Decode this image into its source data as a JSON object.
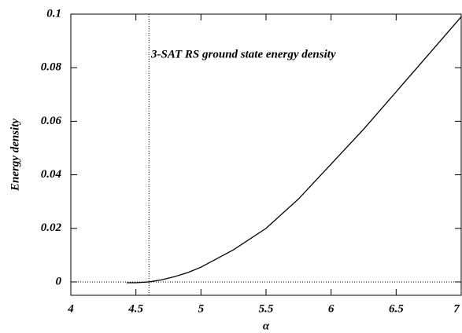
{
  "chart_data": {
    "type": "line",
    "annotation": "3-SAT   RS ground state energy density",
    "xlabel": "α",
    "ylabel": "Energy density",
    "x": [
      4.43,
      4.5,
      4.6,
      4.7,
      4.8,
      4.9,
      5.0,
      5.25,
      5.5,
      5.75,
      6.0,
      6.25,
      6.5,
      6.75,
      7.0
    ],
    "values": [
      -0.0003,
      -0.0003,
      0,
      0.0008,
      0.002,
      0.0035,
      0.0055,
      0.012,
      0.02,
      0.031,
      0.044,
      0.057,
      0.071,
      0.085,
      0.099
    ],
    "color": "#000000",
    "reference_lines": {
      "x": 4.6,
      "y": 0
    },
    "xlim": [
      4,
      7
    ],
    "xticks": [
      4,
      4.5,
      5,
      5.5,
      6,
      6.5,
      7
    ],
    "ylim": [
      -0.005,
      0.1
    ],
    "yticks": [
      0,
      0.02,
      0.04,
      0.06,
      0.08,
      0.1
    ],
    "grid": false
  }
}
